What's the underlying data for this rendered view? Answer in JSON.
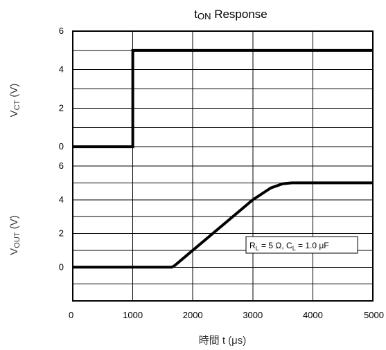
{
  "chart_data": {
    "type": "line",
    "title_main": "t",
    "title_sub": "ON",
    "title_rest": " Response",
    "xlabel": "時間 t (μs)",
    "x_ticks": [
      "0",
      "1000",
      "2000",
      "3000",
      "4000",
      "5000"
    ],
    "xlim": [
      0,
      5000
    ],
    "panels": [
      {
        "ylabel_main": "V",
        "ylabel_sub": "CT",
        "ylabel_rest": " (V)",
        "ylim": [
          -1,
          6
        ],
        "y_ticks": [
          "0",
          "2",
          "4",
          "6"
        ],
        "series": [
          {
            "x": [
              0,
              1000,
              1000,
              5000
            ],
            "y": [
              0,
              0,
              5,
              5
            ]
          }
        ]
      },
      {
        "ylabel_main": "V",
        "ylabel_sub": "OUT",
        "ylabel_rest": " (V)",
        "ylim": [
          -2,
          6
        ],
        "y_ticks": [
          "0",
          "2",
          "4",
          "6"
        ],
        "series": [
          {
            "x": [
              0,
              1650,
              1700,
              3000,
              3300,
              3500,
              3650,
              5000
            ],
            "y": [
              0,
              0,
              0.1,
              4,
              4.7,
              4.95,
              5,
              5
            ]
          }
        ],
        "annotation": {
          "r_main": "R",
          "r_sub": "L",
          "r_rest": " = 5 Ω, C",
          "c_sub": "L",
          "c_rest": " = 1.0 μF"
        }
      }
    ]
  }
}
